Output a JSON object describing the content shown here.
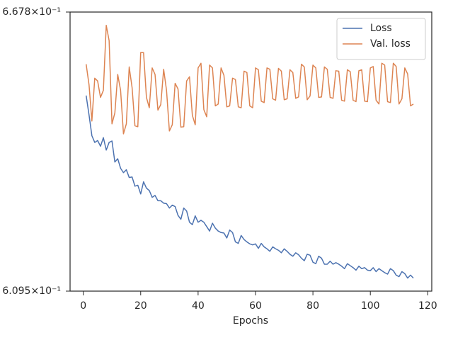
{
  "chart_data": {
    "type": "line",
    "xlabel": "Epochs",
    "yscale": "log",
    "legend": "upper right",
    "x": [
      1,
      2,
      3,
      4,
      5,
      6,
      7,
      8,
      9,
      10,
      11,
      12,
      13,
      14,
      15,
      16,
      17,
      18,
      19,
      20,
      21,
      22,
      23,
      24,
      25,
      26,
      27,
      28,
      29,
      30,
      31,
      32,
      33,
      34,
      35,
      36,
      37,
      38,
      39,
      40,
      41,
      42,
      43,
      44,
      45,
      46,
      47,
      48,
      49,
      50,
      51,
      52,
      53,
      54,
      55,
      56,
      57,
      58,
      59,
      60,
      61,
      62,
      63,
      64,
      65,
      66,
      67,
      68,
      69,
      70,
      71,
      72,
      73,
      74,
      75,
      76,
      77,
      78,
      79,
      80,
      81,
      82,
      83,
      84,
      85,
      86,
      87,
      88,
      89,
      90,
      91,
      92,
      93,
      94,
      95,
      96,
      97,
      98,
      99,
      100,
      101,
      102,
      103,
      104,
      105,
      106,
      107,
      108,
      109,
      110,
      111,
      112,
      113,
      114,
      115
    ],
    "series": [
      {
        "name": "Loss",
        "color": "#4c72b0",
        "values": [
          0.6498,
          0.6457,
          0.6413,
          0.6399,
          0.6403,
          0.6391,
          0.6409,
          0.6383,
          0.6399,
          0.6402,
          0.6358,
          0.6365,
          0.6345,
          0.6336,
          0.6342,
          0.6326,
          0.6327,
          0.6308,
          0.631,
          0.6292,
          0.6317,
          0.6304,
          0.6299,
          0.6285,
          0.6289,
          0.6278,
          0.6278,
          0.6273,
          0.6272,
          0.6263,
          0.6269,
          0.6266,
          0.6248,
          0.624,
          0.6263,
          0.6257,
          0.6234,
          0.6229,
          0.6247,
          0.6234,
          0.6238,
          0.6234,
          0.6225,
          0.6216,
          0.6232,
          0.6222,
          0.6216,
          0.6213,
          0.6212,
          0.6202,
          0.6218,
          0.6213,
          0.6194,
          0.6191,
          0.6207,
          0.6199,
          0.6194,
          0.619,
          0.6188,
          0.619,
          0.6181,
          0.6191,
          0.6184,
          0.618,
          0.6175,
          0.6184,
          0.618,
          0.6177,
          0.6172,
          0.618,
          0.6175,
          0.6169,
          0.6165,
          0.6172,
          0.6168,
          0.6161,
          0.6156,
          0.6169,
          0.6167,
          0.6153,
          0.615,
          0.6165,
          0.6161,
          0.6149,
          0.6149,
          0.6155,
          0.6149,
          0.6152,
          0.6149,
          0.6145,
          0.614,
          0.615,
          0.6146,
          0.6142,
          0.6137,
          0.6145,
          0.614,
          0.6142,
          0.6137,
          0.6136,
          0.6142,
          0.6134,
          0.614,
          0.6136,
          0.6132,
          0.6129,
          0.614,
          0.6136,
          0.6127,
          0.6124,
          0.6134,
          0.613,
          0.6121,
          0.6127,
          0.6121
        ]
      },
      {
        "name": "Val. loss",
        "color": "#dd8452",
        "values": [
          0.6565,
          0.6521,
          0.6444,
          0.6535,
          0.6529,
          0.6494,
          0.6509,
          0.6649,
          0.6616,
          0.6438,
          0.6461,
          0.6543,
          0.6509,
          0.6417,
          0.6438,
          0.6559,
          0.6515,
          0.6434,
          0.6432,
          0.659,
          0.659,
          0.6494,
          0.6472,
          0.6557,
          0.6543,
          0.6467,
          0.6479,
          0.6554,
          0.6509,
          0.6423,
          0.6436,
          0.6524,
          0.6512,
          0.6431,
          0.6432,
          0.6529,
          0.6538,
          0.6456,
          0.6436,
          0.6557,
          0.6567,
          0.6468,
          0.6453,
          0.6563,
          0.6557,
          0.6476,
          0.648,
          0.6557,
          0.6541,
          0.6474,
          0.6476,
          0.6535,
          0.6532,
          0.6474,
          0.6472,
          0.655,
          0.6547,
          0.6476,
          0.6472,
          0.6557,
          0.6553,
          0.6486,
          0.6483,
          0.6557,
          0.6554,
          0.6491,
          0.6488,
          0.6556,
          0.655,
          0.6489,
          0.6491,
          0.6553,
          0.6547,
          0.6492,
          0.6495,
          0.6565,
          0.6559,
          0.6489,
          0.6497,
          0.6563,
          0.6557,
          0.6494,
          0.6495,
          0.6559,
          0.6554,
          0.6494,
          0.6492,
          0.6551,
          0.655,
          0.6488,
          0.6486,
          0.6553,
          0.6549,
          0.6488,
          0.6485,
          0.6551,
          0.6553,
          0.6486,
          0.6485,
          0.6557,
          0.656,
          0.6488,
          0.648,
          0.6567,
          0.6563,
          0.6485,
          0.6483,
          0.6567,
          0.656,
          0.648,
          0.6491,
          0.6557,
          0.6544,
          0.6476,
          0.648
        ]
      }
    ],
    "xlim": [
      -4.6,
      121.4
    ],
    "xticks": [
      0,
      20,
      40,
      60,
      80,
      100,
      120
    ],
    "ylim": [
      0.6095,
      0.6678
    ],
    "yticks": [
      {
        "value": 0.6095,
        "label": "6.095×10⁻¹"
      },
      {
        "value": 0.6678,
        "label": "6.678×10⁻¹"
      }
    ],
    "grid": false
  }
}
